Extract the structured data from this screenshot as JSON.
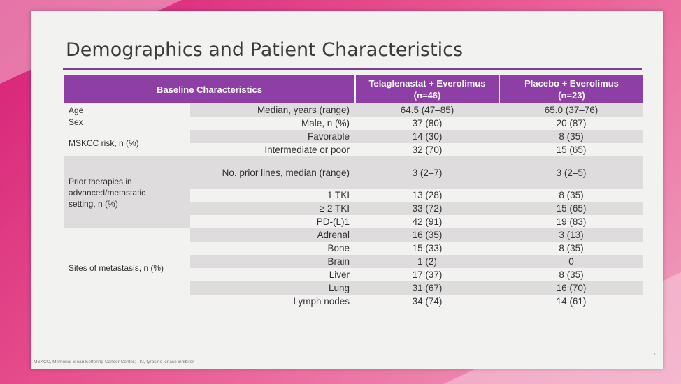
{
  "slide": {
    "title": "Demographics and Patient Characteristics",
    "footnote": "MSKCC, Memorial Sloan Kettering Cancer Center; TKI, tyrosine kinase inhibitor",
    "page_number": "7"
  },
  "table": {
    "headers": {
      "baseline": "Baseline Characteristics",
      "tela_line1": "Telaglenastat + Everolimus",
      "tela_line2": "(n=46)",
      "placebo_line1": "Placebo + Everolimus",
      "placebo_line2": "(n=23)"
    },
    "groups": {
      "age": "Age",
      "sex": "Sex",
      "mskcc": "MSKCC risk, n (%)",
      "prior_l1": "Prior therapies in",
      "prior_l2": "advanced/metastatic",
      "prior_l3": "setting, n (%)",
      "sites": "Sites of metastasis, n (%)"
    },
    "rows": [
      {
        "label": "Median, years (range)",
        "tela": "64.5 (47–85)",
        "placebo": "65.0 (37–76)"
      },
      {
        "label": "Male, n (%)",
        "tela": "37 (80)",
        "placebo": "20 (87)"
      },
      {
        "label": "Favorable",
        "tela": "14 (30)",
        "placebo": "8 (35)"
      },
      {
        "label": "Intermediate or poor",
        "tela": "32 (70)",
        "placebo": "15 (65)"
      },
      {
        "label": "No. prior lines, median (range)",
        "tela": "3 (2–7)",
        "placebo": "3 (2–5)"
      },
      {
        "label": "1 TKI",
        "tela": "13 (28)",
        "placebo": "8 (35)"
      },
      {
        "label": "≥ 2 TKI",
        "tela": "33 (72)",
        "placebo": "15 (65)"
      },
      {
        "label": "PD-(L)1",
        "tela": "42 (91)",
        "placebo": "19 (83)"
      },
      {
        "label": "Adrenal",
        "tela": "16 (35)",
        "placebo": "3 (13)"
      },
      {
        "label": "Bone",
        "tela": "15 (33)",
        "placebo": "8 (35)"
      },
      {
        "label": "Brain",
        "tela": "1 (2)",
        "placebo": "0"
      },
      {
        "label": "Liver",
        "tela": "17 (37)",
        "placebo": "8 (35)"
      },
      {
        "label": "Lung",
        "tela": "31 (67)",
        "placebo": "16 (70)"
      },
      {
        "label": "Lymph nodes",
        "tela": "34 (74)",
        "placebo": "14 (61)"
      }
    ]
  }
}
